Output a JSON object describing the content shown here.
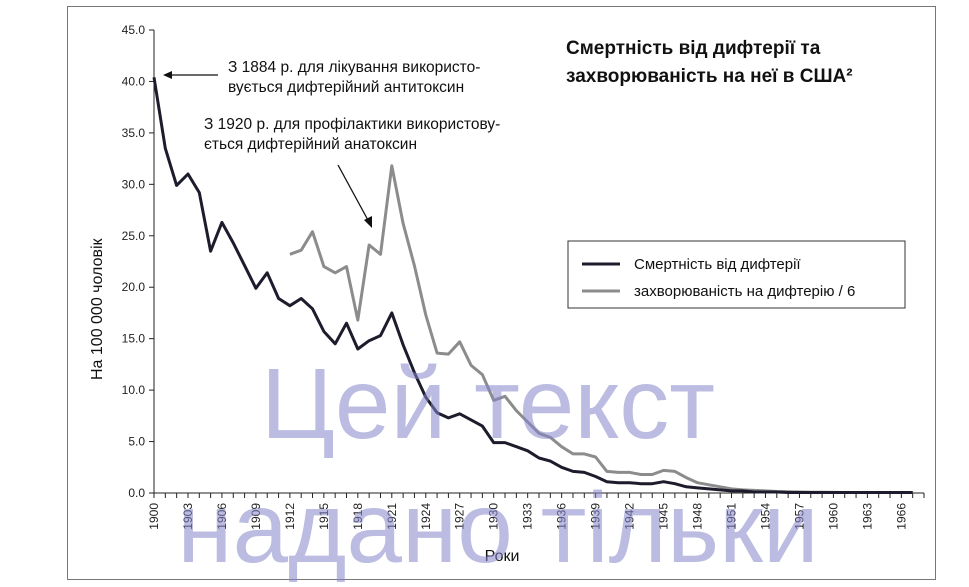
{
  "chart_data": {
    "type": "line",
    "title_lines": [
      "Смертність від дифтерії та",
      "захворюваність на неї в США²"
    ],
    "xlabel": "Роки",
    "ylabel": "На 100 000 чоловік",
    "ylim": [
      0,
      45
    ],
    "yticks": [
      "0.0",
      "5.0",
      "10.0",
      "15.0",
      "20.0",
      "25.0",
      "30.0",
      "35.0",
      "40.0",
      "45.0"
    ],
    "xlim": [
      1900,
      1968
    ],
    "xticks": [
      "1900",
      "1903",
      "1906",
      "1909",
      "1912",
      "1915",
      "1918",
      "1921",
      "1924",
      "1927",
      "1930",
      "1933",
      "1936",
      "1939",
      "1942",
      "1945",
      "1948",
      "1951",
      "1954",
      "1957",
      "1960",
      "1963",
      "1966"
    ],
    "grid": false,
    "legend_position": "right",
    "annotations": [
      [
        "З 1884 р. для лікування використо-",
        "вується дифтерійний антитоксин"
      ],
      [
        "З 1920 р. для профілактики використову-",
        "ється дифтерійний анатоксин"
      ]
    ],
    "series": [
      {
        "name": "Смертність від дифтерії",
        "color": "#1c1c2c",
        "x": [
          1900,
          1901,
          1902,
          1903,
          1904,
          1905,
          1906,
          1907,
          1908,
          1909,
          1910,
          1911,
          1912,
          1913,
          1914,
          1915,
          1916,
          1917,
          1918,
          1919,
          1920,
          1921,
          1922,
          1923,
          1924,
          1925,
          1926,
          1927,
          1928,
          1929,
          1930,
          1931,
          1932,
          1933,
          1934,
          1935,
          1936,
          1937,
          1938,
          1939,
          1940,
          1941,
          1942,
          1943,
          1944,
          1945,
          1946,
          1947,
          1948,
          1949,
          1950,
          1951,
          1952,
          1953,
          1954,
          1955,
          1956,
          1957,
          1958,
          1959,
          1960,
          1961,
          1962,
          1963,
          1964,
          1965,
          1966,
          1967
        ],
        "values": [
          40.4,
          33.5,
          29.9,
          31.0,
          29.2,
          23.5,
          26.3,
          24.3,
          22.1,
          19.9,
          21.4,
          18.9,
          18.2,
          18.9,
          17.9,
          15.7,
          14.5,
          16.5,
          14.0,
          14.8,
          15.3,
          17.5,
          14.4,
          11.7,
          9.3,
          7.8,
          7.3,
          7.7,
          7.1,
          6.5,
          4.9,
          4.9,
          4.5,
          4.1,
          3.4,
          3.1,
          2.5,
          2.1,
          2.0,
          1.6,
          1.1,
          1.0,
          1.0,
          0.9,
          0.9,
          1.1,
          0.9,
          0.6,
          0.5,
          0.4,
          0.3,
          0.2,
          0.2,
          0.1,
          0.1,
          0.1,
          0.05,
          0.05,
          0.05,
          0.05,
          0.05,
          0.05,
          0.05,
          0.05,
          0.05,
          0.05,
          0.05,
          0.05
        ]
      },
      {
        "name": "захворюваність на дифтерію / 6",
        "color": "#8c8c8c",
        "x": [
          1912,
          1913,
          1914,
          1915,
          1916,
          1917,
          1918,
          1919,
          1920,
          1921,
          1922,
          1923,
          1924,
          1925,
          1926,
          1927,
          1928,
          1929,
          1930,
          1931,
          1932,
          1933,
          1934,
          1935,
          1936,
          1937,
          1938,
          1939,
          1940,
          1941,
          1942,
          1943,
          1944,
          1945,
          1946,
          1947,
          1948,
          1949,
          1950,
          1951,
          1952,
          1953,
          1954,
          1955,
          1956,
          1957,
          1958,
          1959,
          1960,
          1961,
          1962,
          1963,
          1964,
          1965,
          1966,
          1967
        ],
        "values": [
          23.2,
          23.6,
          25.4,
          22.0,
          21.4,
          22.0,
          16.8,
          24.1,
          23.2,
          31.8,
          26.2,
          22.1,
          17.3,
          13.6,
          13.5,
          14.7,
          12.4,
          11.5,
          9.0,
          9.4,
          8.0,
          6.9,
          5.8,
          5.4,
          4.5,
          3.8,
          3.8,
          3.5,
          2.1,
          2.0,
          2.0,
          1.8,
          1.8,
          2.2,
          2.1,
          1.5,
          1.0,
          0.8,
          0.6,
          0.4,
          0.3,
          0.25,
          0.2,
          0.15,
          0.12,
          0.1,
          0.08,
          0.08,
          0.06,
          0.05,
          0.05,
          0.05,
          0.05,
          0.05,
          0.05,
          0.05
        ]
      }
    ]
  },
  "watermark": [
    "Цей текст",
    "надано тільки"
  ]
}
